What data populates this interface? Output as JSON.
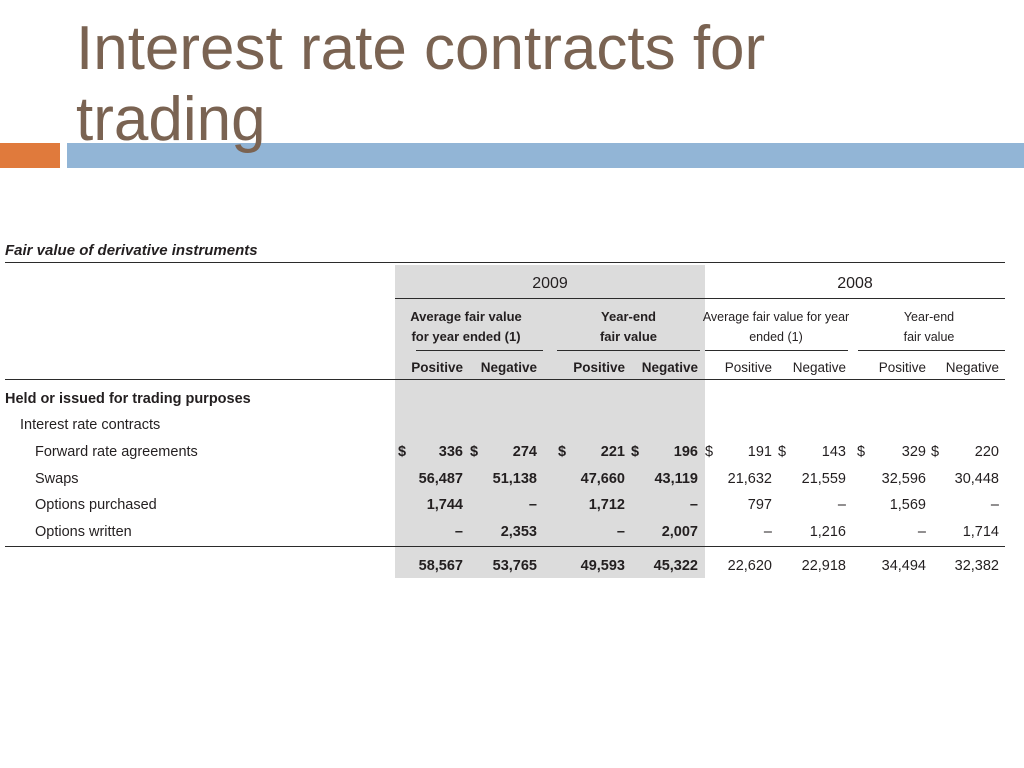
{
  "slide": {
    "title": "Interest rate contracts for trading"
  },
  "colors": {
    "title_text": "#7A6352",
    "accent_orange": "#E07A3C",
    "accent_blue": "#92B5D6",
    "current_year_shading": "#DCDCDC",
    "table_text": "#231F20"
  },
  "table": {
    "caption": "Fair value of derivative instruments",
    "years": [
      "2009",
      "2008"
    ],
    "column_groups": [
      {
        "lines": [
          "Average fair value",
          "for year ended (1)"
        ]
      },
      {
        "lines": [
          "Year-end",
          "fair value"
        ]
      },
      {
        "lines": [
          "Average fair value for year",
          "ended (1)"
        ]
      },
      {
        "lines": [
          "Year-end",
          "fair value"
        ]
      }
    ],
    "subheaders": [
      "Positive",
      "Negative",
      "Positive",
      "Negative",
      "Positive",
      "Negative",
      "Positive",
      "Negative"
    ],
    "section_label": "Held or issued for trading purposes",
    "group_label": "Interest rate contracts",
    "rows": [
      {
        "label": "Forward rate agreements",
        "currency": "$",
        "values": [
          "336",
          "274",
          "221",
          "196",
          "191",
          "143",
          "329",
          "220"
        ]
      },
      {
        "label": "Swaps",
        "values": [
          "56,487",
          "51,138",
          "47,660",
          "43,119",
          "21,632",
          "21,559",
          "32,596",
          "30,448"
        ]
      },
      {
        "label": "Options purchased",
        "values": [
          "1,744",
          "–",
          "1,712",
          "–",
          "797",
          "–",
          "1,569",
          "–"
        ]
      },
      {
        "label": "Options written",
        "values": [
          "–",
          "2,353",
          "–",
          "2,007",
          "–",
          "1,216",
          "–",
          "1,714"
        ]
      }
    ],
    "totals": [
      "58,567",
      "53,765",
      "49,593",
      "45,322",
      "22,620",
      "22,918",
      "34,494",
      "32,382"
    ]
  }
}
